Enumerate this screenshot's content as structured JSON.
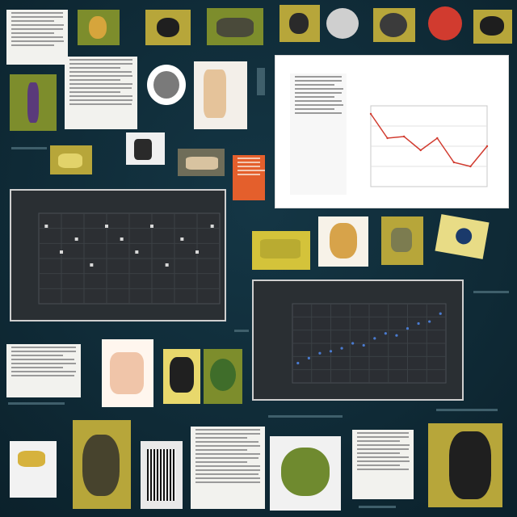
{
  "board": {
    "background": "#0f2a36",
    "accent_red": "#d13b2f",
    "accent_yellow": "#d4c33a",
    "accent_blue": "#4a7bd0"
  },
  "chart_data": [
    {
      "type": "line",
      "x": [
        1,
        2,
        3,
        4,
        5,
        6,
        7,
        8
      ],
      "values": [
        9,
        6,
        6.2,
        4.5,
        6,
        3,
        2.5,
        5
      ],
      "title": "",
      "xlabel": "",
      "ylabel": "",
      "grid": true
    },
    {
      "type": "scatter",
      "x": [
        1,
        2,
        3,
        4,
        5,
        6,
        7,
        8,
        9,
        10,
        11,
        12
      ],
      "values": [
        6,
        4,
        5,
        3,
        6,
        5,
        4,
        6,
        3,
        5,
        4,
        6
      ],
      "title": "",
      "xlabel": "",
      "ylabel": "",
      "grid": true
    },
    {
      "type": "scatter",
      "x": [
        1,
        2,
        3,
        4,
        5,
        6,
        7,
        8,
        9,
        10,
        11,
        12,
        13,
        14
      ],
      "values": [
        2,
        2.5,
        3,
        3.2,
        3.5,
        4,
        3.8,
        4.5,
        5,
        4.8,
        5.5,
        6,
        6.2,
        7
      ],
      "title": "",
      "xlabel": "",
      "ylabel": "",
      "grid": true
    }
  ]
}
